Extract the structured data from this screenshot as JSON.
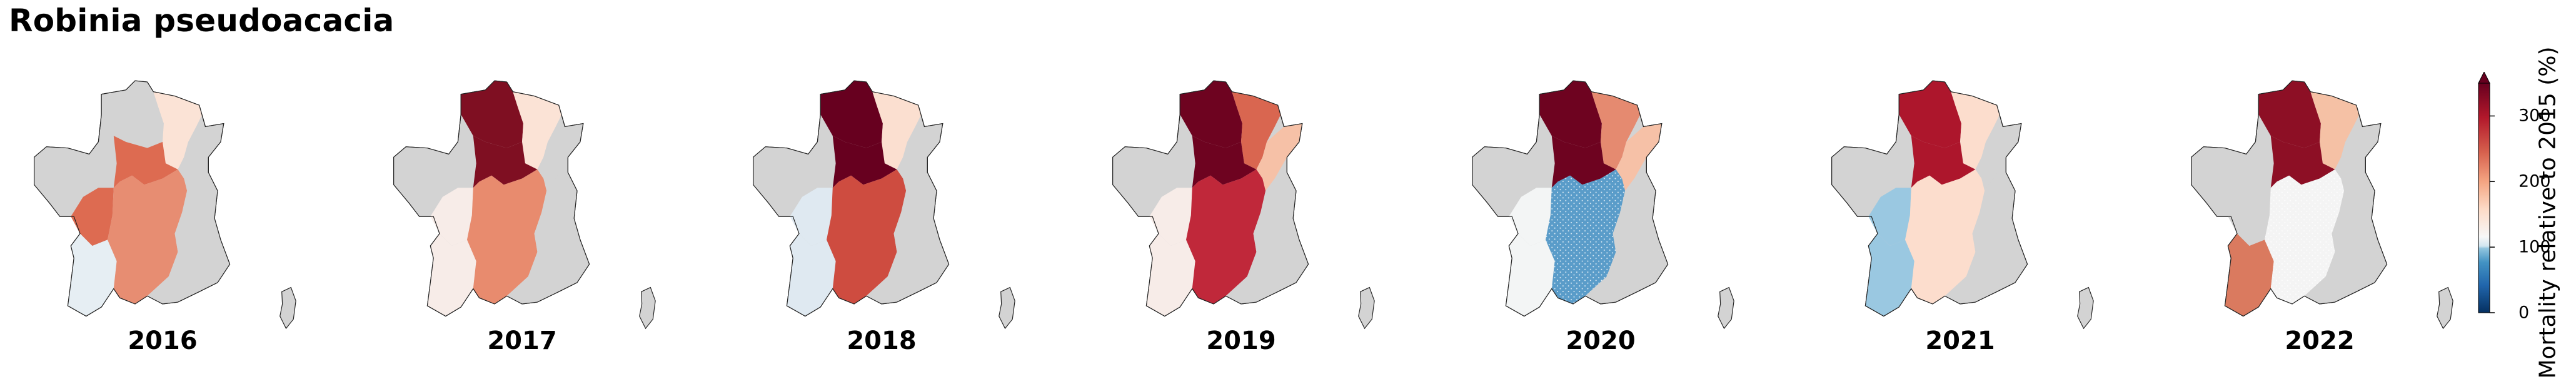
{
  "title": "Robinia pseudoacacia",
  "colorbar": {
    "label": "Mortality relative to 2015 (%)",
    "ticks": [
      "0",
      "100",
      "200",
      "300"
    ],
    "extend": "max",
    "colormap": "RdBu_r",
    "range": [
      0,
      350
    ]
  },
  "no_data_color": "#d3d3d3",
  "panels": [
    {
      "year": "2016",
      "regions": {
        "west": "#d3d3d3",
        "north": "#d3d3d3",
        "northeast": "#fbe3d6",
        "east": "#d3d3d3",
        "center": "#dd6b51",
        "loire": "#dd6b51",
        "southwest": "#e6eef3",
        "massif": "#e78d72",
        "south": "#d3d3d3"
      },
      "hatch": []
    },
    {
      "year": "2017",
      "regions": {
        "west": "#d3d3d3",
        "north": "#7f0f22",
        "northeast": "#fbe3d6",
        "east": "#d3d3d3",
        "center": "#7f0f22",
        "loire": "#f7ece8",
        "southwest": "#f7ece8",
        "massif": "#e88b6e",
        "south": "#d3d3d3"
      },
      "hatch": []
    },
    {
      "year": "2018",
      "regions": {
        "west": "#d3d3d3",
        "north": "#67001f",
        "northeast": "#fbdfd0",
        "east": "#d3d3d3",
        "center": "#67001f",
        "loire": "#dfe9f1",
        "southwest": "#dfe9f1",
        "massif": "#ce4c40",
        "south": "#d3d3d3"
      },
      "hatch": []
    },
    {
      "year": "2019",
      "regions": {
        "west": "#d3d3d3",
        "north": "#6e0320",
        "northeast": "#d96650",
        "east": "#f6c1a7",
        "center": "#6e0320",
        "loire": "#f7ece8",
        "southwest": "#f7ece8",
        "massif": "#c0283a",
        "south": "#d3d3d3"
      },
      "hatch": []
    },
    {
      "year": "2020",
      "regions": {
        "west": "#d3d3d3",
        "north": "#6e0320",
        "northeast": "#e58a70",
        "east": "#f6c1a7",
        "center": "#6e0320",
        "loire": "#f3f5f5",
        "southwest": "#f3f5f5",
        "massif": "#5a9cc9",
        "south": "#d3d3d3"
      },
      "hatch": [
        "massif"
      ]
    },
    {
      "year": "2021",
      "regions": {
        "west": "#d3d3d3",
        "north": "#ad162c",
        "northeast": "#fcddcd",
        "east": "#d3d3d3",
        "center": "#ad162c",
        "loire": "#9ac8e1",
        "southwest": "#9ac8e1",
        "massif": "#fcddcd",
        "south": "#d3d3d3"
      },
      "hatch": []
    },
    {
      "year": "2022",
      "regions": {
        "west": "#d3d3d3",
        "north": "#8d0f25",
        "northeast": "#f5c1a5",
        "east": "#d3d3d3",
        "center": "#8d0f25",
        "loire": "#d3d3d3",
        "southwest": "#da7a5f",
        "massif": "#f4f4f4",
        "south": "#d3d3d3"
      },
      "hatch": [
        "massif"
      ]
    }
  ]
}
